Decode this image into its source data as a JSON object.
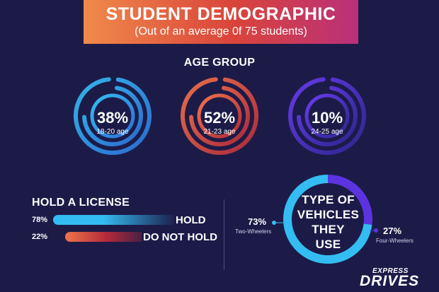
{
  "header": {
    "title": "STUDENT DEMOGRAPHIC",
    "subtitle": "(Out of an average 0f 75 students)"
  },
  "colors": {
    "background": "#1c1b48",
    "banner_start": "#f08a4b",
    "banner_end": "#b9307a",
    "cyan": "#34bdf2",
    "cyan_dark": "#2c6fd6",
    "orange": "#f0744a",
    "red": "#b32a3a",
    "purple": "#5b34e0",
    "purple_dark": "#2e2692"
  },
  "age_group": {
    "title": "AGE GROUP",
    "items": [
      {
        "pct_label": "38%",
        "value": 38,
        "label": "18-20 age",
        "color_from": "#34bdf2",
        "color_to": "#2c6fd6"
      },
      {
        "pct_label": "52%",
        "value": 52,
        "label": "21-23 age",
        "color_from": "#f0744a",
        "color_to": "#b32a3a"
      },
      {
        "pct_label": "10%",
        "value": 10,
        "label": "24-25 age",
        "color_from": "#6a3cf0",
        "color_to": "#2e2692"
      }
    ]
  },
  "license": {
    "title": "HOLD A LICENSE",
    "items": [
      {
        "pct_label": "78%",
        "value": 78,
        "label": "HOLD"
      },
      {
        "pct_label": "22%",
        "value": 22,
        "label": "DO NOT HOLD"
      }
    ]
  },
  "vehicles": {
    "title_lines": [
      "TYPE OF",
      "VEHICLES",
      "THEY",
      "USE"
    ],
    "two_wheelers": {
      "pct_label": "73%",
      "label": "Two-Wheelers",
      "value": 73
    },
    "four_wheelers": {
      "pct_label": "27%",
      "label": "Four-Wheelers",
      "value": 27
    }
  },
  "brand": {
    "top": "EXPRESS",
    "main": "DRIVES"
  },
  "chart_data": [
    {
      "type": "pie",
      "title": "AGE GROUP",
      "categories": [
        "18-20 age",
        "21-23 age",
        "24-25 age"
      ],
      "values": [
        38,
        52,
        10
      ]
    },
    {
      "type": "bar",
      "title": "HOLD A LICENSE",
      "categories": [
        "HOLD",
        "DO NOT HOLD"
      ],
      "values": [
        78,
        22
      ]
    },
    {
      "type": "pie",
      "title": "TYPE OF VEHICLES THEY USE",
      "categories": [
        "Two-Wheelers",
        "Four-Wheelers"
      ],
      "values": [
        73,
        27
      ]
    }
  ]
}
